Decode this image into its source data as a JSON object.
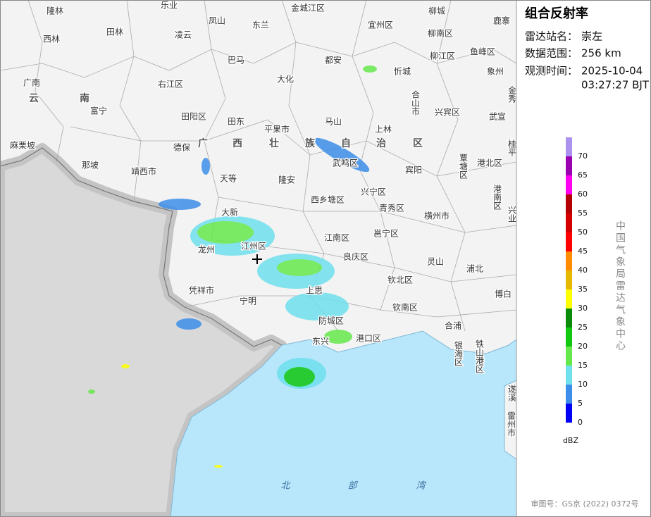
{
  "panel": {
    "title": "组合反射率",
    "station_label": "雷达站名：",
    "station": "崇左",
    "range_label": "数据范围：",
    "range": "256 km",
    "time_label": "观测时间：",
    "date": "2025-10-04",
    "time": "03:27:27 BJT"
  },
  "legend": {
    "unit": "dBZ",
    "levels": [
      {
        "value": 0,
        "color": "#0000f6"
      },
      {
        "value": 5,
        "color": "#3c8ee8"
      },
      {
        "value": 10,
        "color": "#6fe0ee"
      },
      {
        "value": 15,
        "color": "#66e84c"
      },
      {
        "value": 20,
        "color": "#10c810"
      },
      {
        "value": 25,
        "color": "#0a8c0a"
      },
      {
        "value": 30,
        "color": "#ffff00"
      },
      {
        "value": 35,
        "color": "#e6b800"
      },
      {
        "value": 40,
        "color": "#ff8c00"
      },
      {
        "value": 45,
        "color": "#ff0000"
      },
      {
        "value": 50,
        "color": "#d40000"
      },
      {
        "value": 55,
        "color": "#b40000"
      },
      {
        "value": 60,
        "color": "#ff00f0"
      },
      {
        "value": 65,
        "color": "#9a00b0"
      },
      {
        "value": 70,
        "color": "#ab92ee"
      }
    ]
  },
  "credit": "中国气象局雷达气象中心",
  "approval": "审图号：GS京 (2022) 0372号",
  "map_labels": [
    "隆林",
    "乐业",
    "金城江区",
    "柳城",
    "鹿寨",
    "西林",
    "田林",
    "凌云",
    "凤山",
    "东兰",
    "宜州区",
    "柳南区",
    "巴马",
    "都安",
    "柳江区",
    "鱼峰区",
    "象州",
    "忻城",
    "广南",
    "右江区",
    "大化",
    "合山市",
    "金秀",
    "云",
    "南",
    "富宁",
    "田阳区",
    "田东",
    "马山",
    "兴宾区",
    "武宣",
    "平果市",
    "上林",
    "麻栗坡",
    "德保",
    "广",
    "西",
    "壮",
    "族",
    "自",
    "治",
    "区",
    "覃塘区",
    "港北区",
    "桂平",
    "那坡",
    "靖西市",
    "天等",
    "隆安",
    "武鸣区",
    "宾阳",
    "港南区",
    "兴宁区",
    "西乡塘区",
    "青秀区",
    "大新",
    "横州市",
    "兴业",
    "江南区",
    "邕宁区",
    "江州区",
    "龙州",
    "良庆区",
    "灵山",
    "浦北",
    "凭祥市",
    "钦北区",
    "宁明",
    "上思",
    "博白",
    "钦南区",
    "防城区",
    "合浦",
    "东兴",
    "港口区",
    "银海区",
    "铁山港区",
    "遂溪",
    "雷州市",
    "北",
    "部",
    "湾"
  ]
}
